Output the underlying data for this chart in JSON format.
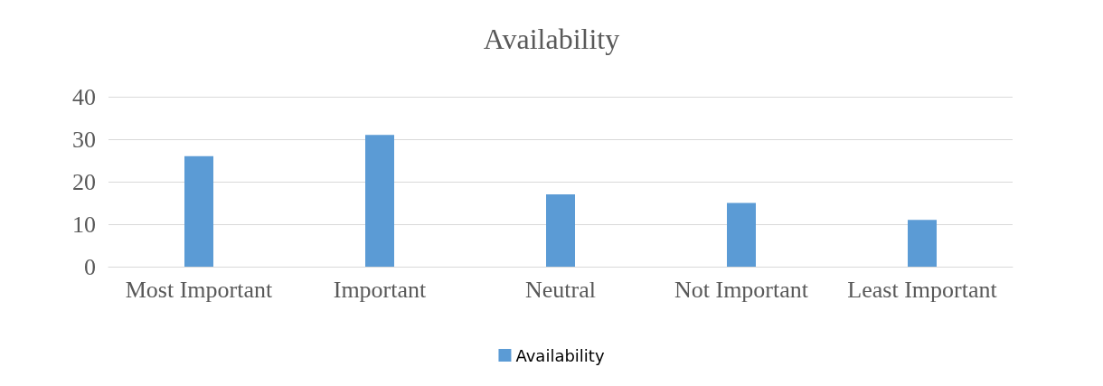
{
  "chart_data": {
    "type": "bar",
    "title": "Availability",
    "categories": [
      "Most Important",
      "Important",
      "Neutral",
      "Not Important",
      "Least Important"
    ],
    "series": [
      {
        "name": "Availability",
        "color": "#5b9bd5",
        "values": [
          26,
          31,
          17,
          15,
          11
        ]
      }
    ],
    "ylim": [
      0,
      40
    ],
    "yticks": [
      0,
      10,
      20,
      30,
      40
    ],
    "grid": "y",
    "legend": "bottom"
  }
}
